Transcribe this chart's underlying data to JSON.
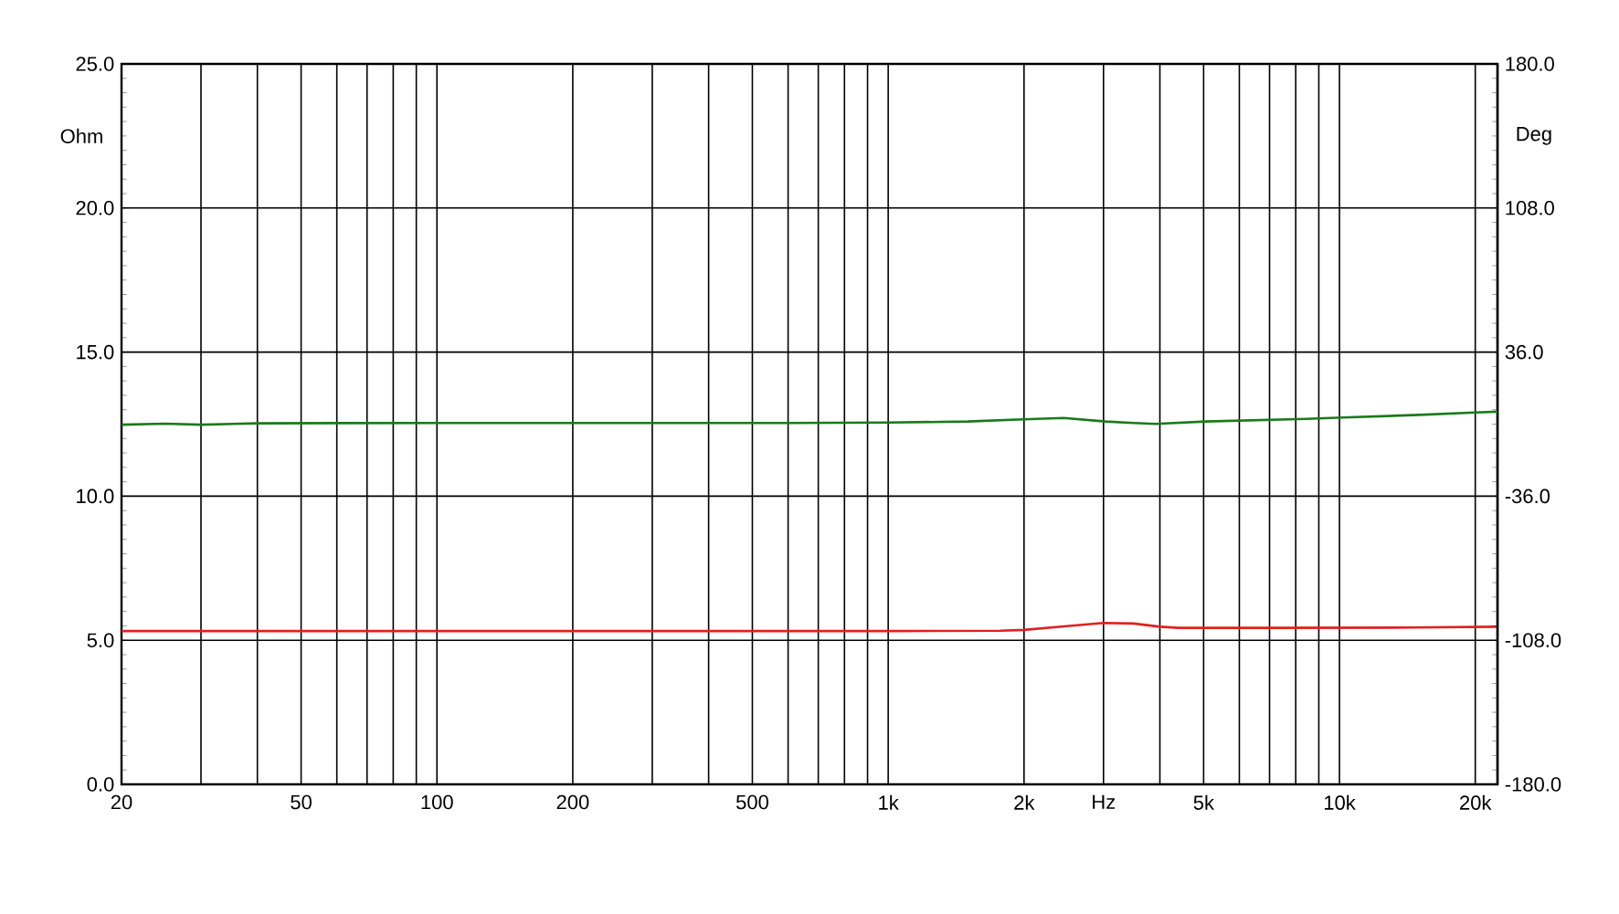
{
  "chart_data": {
    "type": "line",
    "log": "x",
    "grid": true,
    "marker": "none",
    "ylabel": "Ohm",
    "y2label": "Deg",
    "xlim": [
      20,
      22400
    ],
    "xticks": [
      20,
      {
        "value": 30,
        "label": null
      },
      {
        "value": 40,
        "label": null
      },
      50,
      {
        "value": 60,
        "label": null
      },
      {
        "value": 70,
        "label": null
      },
      {
        "value": 80,
        "label": null
      },
      {
        "value": 90,
        "label": null
      },
      100,
      200,
      {
        "value": 300,
        "label": null
      },
      {
        "value": 400,
        "label": null
      },
      500,
      {
        "value": 600,
        "label": null
      },
      {
        "value": 700,
        "label": null
      },
      {
        "value": 800,
        "label": null
      },
      {
        "value": 900,
        "label": null
      },
      {
        "value": 1000,
        "label": "1k"
      },
      {
        "value": 2000,
        "label": "2k"
      },
      {
        "value": 3000,
        "label": "Hz"
      },
      {
        "value": 4000,
        "label": null
      },
      {
        "value": 5000,
        "label": "5k"
      },
      {
        "value": 6000,
        "label": null
      },
      {
        "value": 7000,
        "label": null
      },
      {
        "value": 8000,
        "label": null
      },
      {
        "value": 9000,
        "label": null
      },
      {
        "value": 10000,
        "label": "10k"
      },
      {
        "value": 20000,
        "label": "20k"
      }
    ],
    "ylim": [
      0,
      25
    ],
    "yticks": [
      {
        "value": 0,
        "label": "0.0"
      },
      {
        "value": 5,
        "label": "5.0"
      },
      {
        "value": 10,
        "label": "10.0"
      },
      {
        "value": 15,
        "label": "15.0"
      },
      {
        "value": 20,
        "label": "20.0"
      },
      {
        "value": 25,
        "label": "25.0"
      }
    ],
    "y2lim": [
      -180,
      180
    ],
    "y2ticks": [
      {
        "value": -180,
        "label": "-180.0"
      },
      {
        "value": -108,
        "label": "-108.0"
      },
      {
        "value": -36,
        "label": "-36.0"
      },
      {
        "value": 36,
        "label": "36.0"
      },
      {
        "value": 108,
        "label": "108.0"
      },
      {
        "value": 180,
        "label": "180.0"
      }
    ],
    "series": [
      {
        "color": "#e02020",
        "x": [
          20,
          100,
          1000,
          1770,
          2000,
          2450,
          3000,
          3500,
          4000,
          4400,
          7000,
          14400,
          22400
        ],
        "values": [
          5.32,
          5.32,
          5.32,
          5.33,
          5.36,
          5.48,
          5.6,
          5.58,
          5.47,
          5.43,
          5.43,
          5.44,
          5.47
        ]
      },
      {
        "color": "#1a7a1a",
        "axis": "y2",
        "x": [
          20,
          25,
          30,
          40,
          60,
          100,
          300,
          600,
          1000,
          1500,
          1990,
          2450,
          3030,
          3500,
          3910,
          5050,
          8450,
          10180,
          15000,
          20000,
          22400
        ],
        "values": [
          -0.3,
          0.2,
          -0.3,
          0.4,
          0.5,
          0.6,
          0.6,
          0.6,
          0.8,
          1.3,
          2.4,
          3.1,
          1.3,
          0.6,
          0.1,
          1.3,
          2.6,
          3.3,
          4.6,
          5.8,
          6.2
        ]
      }
    ]
  }
}
